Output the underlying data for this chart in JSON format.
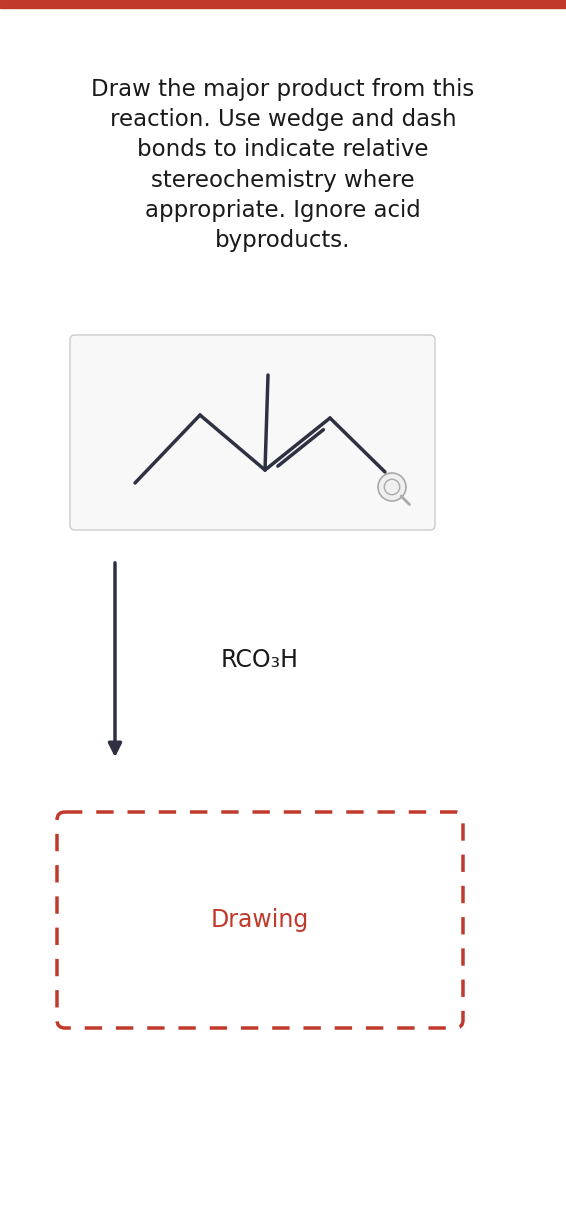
{
  "background_color": "#ffffff",
  "top_bar_color": "#c0392b",
  "title_text": "Draw the major product from this\nreaction. Use wedge and dash\nbonds to indicate relative\nstereochemistry where\nappropriate. Ignore acid\nbyproducts.",
  "title_fontsize": 16.5,
  "title_color": "#1a1a1a",
  "molecule_color": "#2d3142",
  "molecule_lw": 2.5,
  "reagent_text": "RCO₃H",
  "reagent_fontsize": 17,
  "reagent_color": "#1a1a1a",
  "arrow_color": "#2d3142",
  "drawing_box_dash_color": "#c0392b",
  "drawing_text": "Drawing",
  "drawing_text_color": "#c0392b",
  "drawing_fontsize": 17
}
